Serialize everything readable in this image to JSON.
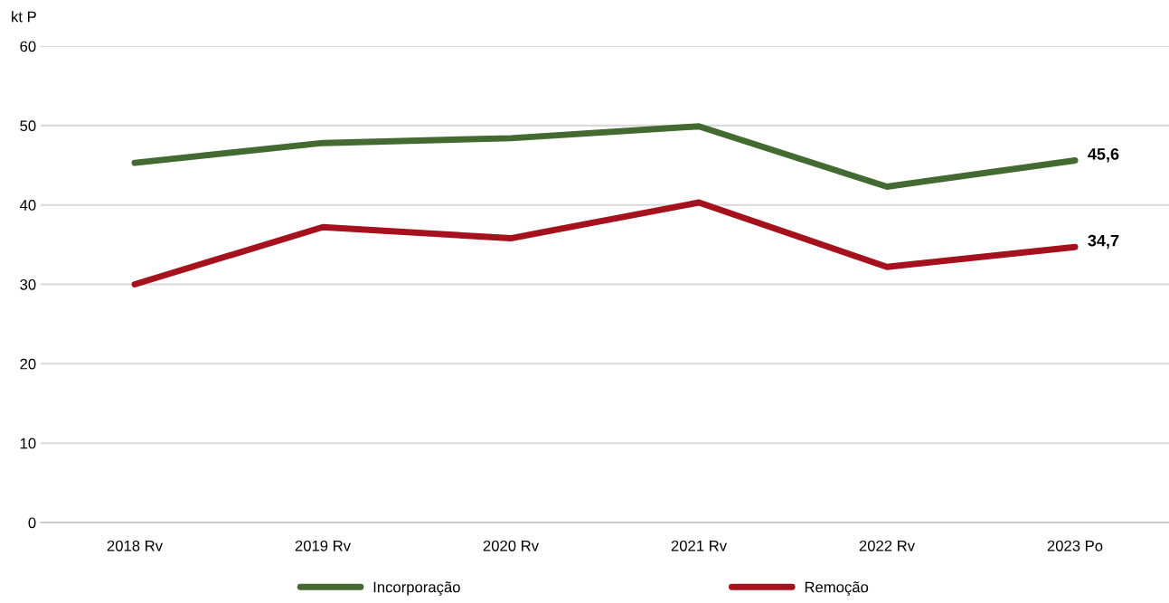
{
  "chart_data": {
    "type": "line",
    "ylabel": "kt P",
    "categories": [
      "2018 Rv",
      "2019 Rv",
      "2020 Rv",
      "2021 Rv",
      "2022 Rv",
      "2023 Po"
    ],
    "series": [
      {
        "name": "Incorporação",
        "color": "#426a31",
        "values": [
          45.3,
          47.8,
          48.4,
          49.9,
          42.3,
          45.6
        ],
        "value_labels": [
          null,
          null,
          null,
          null,
          null,
          "45,6"
        ]
      },
      {
        "name": "Remoção",
        "color": "#a5111d",
        "values": [
          30.0,
          37.2,
          35.8,
          40.3,
          32.2,
          34.7
        ],
        "value_labels": [
          null,
          null,
          null,
          null,
          null,
          "34,7"
        ]
      }
    ],
    "ylim": [
      0,
      60
    ],
    "yticks": [
      0,
      10,
      20,
      30,
      40,
      50,
      60
    ],
    "grid": "y",
    "legend": "bottom",
    "marker": "none",
    "line_style": "solid"
  }
}
